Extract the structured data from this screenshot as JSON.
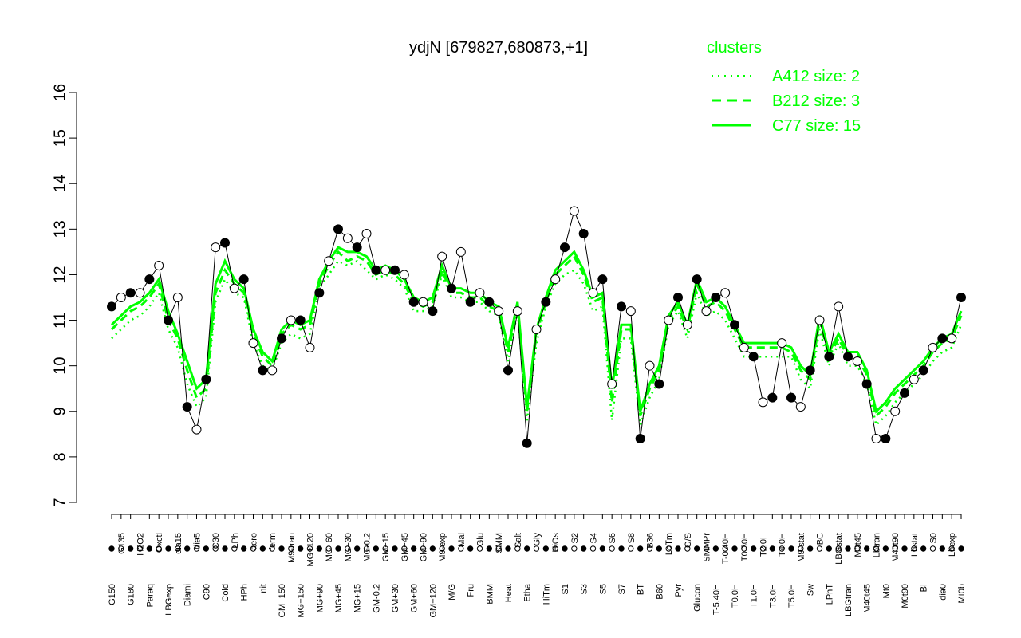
{
  "chart_data": {
    "type": "line",
    "title": "ydjN [679827,680873,+1]",
    "ylim": [
      7,
      16
    ],
    "yticks": [
      7,
      8,
      9,
      10,
      11,
      12,
      13,
      14,
      15,
      16
    ],
    "grid": false,
    "legend": {
      "title": "clusters",
      "placement": "top-right",
      "color": "#00ff00",
      "entries": [
        {
          "label": "A412 size: 2",
          "style": "dotted"
        },
        {
          "label": "B212 size: 3",
          "style": "dashed"
        },
        {
          "label": "C77 size: 15",
          "style": "solid"
        }
      ]
    },
    "colors": {
      "cluster_line": "#00ff00",
      "point_line": "#000000"
    },
    "categories": [
      "G150",
      "G135",
      "G180",
      "H2O2",
      "Paraq",
      "Oxctl",
      "LBGexp",
      "dia15",
      "Diami",
      "dia5",
      "C90",
      "C30",
      "Cold",
      "LPh",
      "HPh",
      "aero",
      "nit",
      "ferm",
      "GM+150",
      "M9-tran",
      "MG+150",
      "MG+120",
      "MG+90",
      "MG+60",
      "MG+45",
      "MG+30",
      "MG+15",
      "MG-0.2",
      "GM-0.2",
      "GM+15",
      "GM+30",
      "GM+45",
      "GM+60",
      "GM+90",
      "GM+120",
      "M9-exp",
      "M/G",
      "Mal",
      "Fru",
      "Glu",
      "BMM",
      "SMM",
      "Heat",
      "Salt",
      "Etha",
      "Gly",
      "HiTm",
      "HiOs",
      "S1",
      "S2",
      "S3",
      "S4",
      "S5",
      "S6",
      "S7",
      "S8",
      "BT",
      "B36",
      "B60",
      "LoTm",
      "Pyr",
      "G/S",
      "Glucon",
      "SMMPr",
      "T-5.40H",
      "T-0.40H",
      "T0.0H",
      "T0.30H",
      "T1.0H",
      "T2.0H",
      "T3.0H",
      "T4.0H",
      "T5.0H",
      "M9-stat",
      "Sw",
      "BC",
      "LPhT",
      "LBGstat",
      "LBGtran",
      "M0t45",
      "M40t45",
      "Lbtran",
      "Mt0",
      "M40t90",
      "M0t90",
      "Lbstat",
      "BI",
      "S0",
      "dia0",
      "Lbexp",
      "Mt0b"
    ],
    "series": [
      {
        "name": "A412 size: 2",
        "values": [
          10.6,
          10.8,
          11.0,
          11.1,
          11.3,
          11.6,
          10.8,
          10.4,
          9.6,
          9.1,
          9.3,
          11.4,
          11.9,
          11.6,
          11.5,
          10.5,
          10.0,
          9.9,
          10.5,
          10.7,
          10.6,
          10.7,
          11.7,
          12.0,
          12.3,
          12.2,
          12.3,
          12.1,
          11.9,
          12.0,
          11.9,
          11.7,
          11.2,
          11.2,
          11.3,
          12.0,
          11.5,
          11.5,
          11.4,
          11.4,
          11.2,
          11.1,
          10.1,
          11.2,
          8.8,
          10.5,
          11.3,
          11.8,
          12.0,
          12.1,
          11.8,
          11.2,
          11.3,
          8.8,
          10.6,
          10.6,
          8.7,
          9.3,
          9.7,
          10.9,
          11.2,
          10.6,
          11.6,
          11.1,
          11.2,
          11.0,
          10.6,
          10.2,
          10.2,
          10.2,
          10.2,
          10.2,
          10.2,
          9.7,
          9.5,
          10.8,
          10.0,
          10.5,
          10.0,
          10.0,
          9.6,
          8.7,
          8.9,
          9.2,
          9.4,
          9.6,
          9.8,
          10.1,
          10.3,
          10.4,
          10.9
        ]
      },
      {
        "name": "B212 size: 3",
        "values": [
          10.8,
          11.0,
          11.2,
          11.3,
          11.5,
          11.8,
          11.0,
          10.6,
          9.9,
          9.3,
          9.5,
          11.6,
          12.1,
          11.8,
          11.6,
          10.7,
          10.2,
          10.0,
          10.7,
          10.9,
          10.8,
          10.9,
          11.8,
          12.2,
          12.5,
          12.3,
          12.4,
          12.3,
          12.0,
          12.1,
          12.0,
          11.8,
          11.4,
          11.3,
          11.4,
          12.1,
          11.6,
          11.6,
          11.5,
          11.5,
          11.3,
          11.2,
          10.3,
          11.3,
          9.0,
          10.7,
          11.4,
          12.0,
          12.2,
          12.4,
          12.0,
          11.4,
          11.5,
          9.2,
          10.8,
          10.8,
          8.9,
          9.5,
          9.9,
          11.0,
          11.3,
          10.8,
          11.8,
          11.3,
          11.4,
          11.2,
          10.8,
          10.4,
          10.4,
          10.4,
          10.4,
          10.4,
          10.3,
          9.9,
          9.7,
          11.0,
          10.2,
          10.6,
          10.2,
          10.2,
          9.8,
          8.9,
          9.1,
          9.4,
          9.6,
          9.8,
          10.0,
          10.3,
          10.5,
          10.6,
          11.1
        ]
      },
      {
        "name": "C77 size: 15",
        "values": [
          10.9,
          11.1,
          11.3,
          11.4,
          11.6,
          11.9,
          11.2,
          10.7,
          10.1,
          9.5,
          9.7,
          11.8,
          12.3,
          11.9,
          11.7,
          10.8,
          10.3,
          10.1,
          10.8,
          11.0,
          10.9,
          11.0,
          11.9,
          12.3,
          12.6,
          12.5,
          12.5,
          12.4,
          12.1,
          12.2,
          12.1,
          11.9,
          11.5,
          11.4,
          11.5,
          12.2,
          11.7,
          11.7,
          11.6,
          11.6,
          11.4,
          11.3,
          10.4,
          11.4,
          9.1,
          10.8,
          11.5,
          12.1,
          12.3,
          12.5,
          12.1,
          11.5,
          11.6,
          9.5,
          10.9,
          10.9,
          9.0,
          9.6,
          10.0,
          11.1,
          11.4,
          10.9,
          11.9,
          11.4,
          11.5,
          11.3,
          10.9,
          10.5,
          10.5,
          10.5,
          10.5,
          10.5,
          10.4,
          10.0,
          9.8,
          11.1,
          10.3,
          10.7,
          10.3,
          10.3,
          9.9,
          9.0,
          9.2,
          9.5,
          9.7,
          9.9,
          10.1,
          10.4,
          10.6,
          10.7,
          11.2
        ]
      },
      {
        "name": "",
        "values": [
          11.3,
          11.5,
          11.6,
          11.6,
          11.9,
          12.2,
          11.0,
          11.5,
          9.1,
          8.6,
          9.7,
          12.6,
          12.7,
          11.7,
          11.9,
          10.5,
          9.9,
          9.9,
          10.6,
          11.0,
          11.0,
          10.4,
          11.6,
          12.3,
          13.0,
          12.8,
          12.6,
          12.9,
          12.1,
          12.1,
          12.1,
          12.0,
          11.4,
          11.4,
          11.2,
          12.4,
          11.7,
          12.5,
          11.4,
          11.6,
          11.4,
          11.2,
          9.9,
          11.2,
          8.3,
          10.8,
          11.4,
          11.9,
          12.6,
          13.4,
          12.9,
          11.6,
          11.9,
          9.6,
          11.3,
          11.2,
          8.4,
          10.0,
          9.6,
          11.0,
          11.5,
          10.9,
          11.9,
          11.2,
          11.5,
          11.6,
          10.9,
          10.4,
          10.2,
          9.2,
          9.3,
          10.5,
          9.3,
          9.1,
          9.9,
          11.0,
          10.2,
          11.3,
          10.2,
          10.1,
          9.6,
          8.4,
          8.4,
          9.0,
          9.4,
          9.7,
          9.9,
          10.4,
          10.6,
          10.6,
          11.5
        ]
      }
    ]
  }
}
